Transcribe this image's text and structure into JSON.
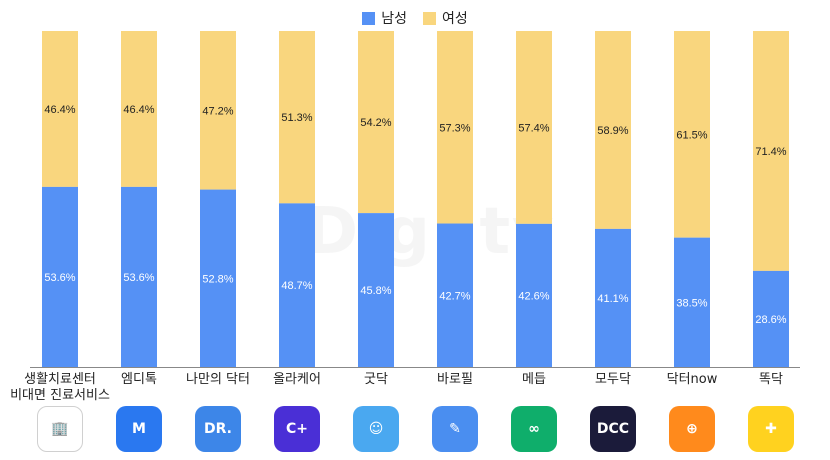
{
  "legend": {
    "male": "남성",
    "female": "여성"
  },
  "colors": {
    "male": "#5591f5",
    "female": "#f9d67e",
    "axis": "#888888"
  },
  "watermark": "Dighty",
  "chart_data": {
    "type": "bar",
    "stacked": true,
    "percent": true,
    "ylim": [
      0,
      100
    ],
    "legend_position": "top-center",
    "categories": [
      "생활치료센터\n비대면 진료서비스",
      "엠디톡",
      "나만의 닥터",
      "올라케어",
      "굿닥",
      "바로필",
      "메듭",
      "모두닥",
      "닥터now",
      "똑닥"
    ],
    "series": [
      {
        "name": "남성",
        "values": [
          53.6,
          53.6,
          52.8,
          48.7,
          45.8,
          42.7,
          42.6,
          41.1,
          38.5,
          28.6
        ]
      },
      {
        "name": "여성",
        "values": [
          46.4,
          46.4,
          47.2,
          51.3,
          54.2,
          57.3,
          57.4,
          58.9,
          61.5,
          71.4
        ]
      }
    ]
  },
  "icons": [
    {
      "name": "gov-building-icon",
      "bg": "#ffffff",
      "fg": "#3b6fc7",
      "border": "#d0d0d0",
      "glyph": "🏢"
    },
    {
      "name": "mdtalk-icon",
      "bg": "#2a78f0",
      "fg": "#ffffff",
      "glyph": "M"
    },
    {
      "name": "dr-icon",
      "bg": "#3d86e8",
      "fg": "#ffffff",
      "glyph": "DR."
    },
    {
      "name": "ollacare-icon",
      "bg": "#4a2fd6",
      "fg": "#ffffff",
      "glyph": "C+"
    },
    {
      "name": "goodoc-icon",
      "bg": "#4aa8f0",
      "fg": "#ffffff",
      "glyph": "☺"
    },
    {
      "name": "barophil-icon",
      "bg": "#4a8ef0",
      "fg": "#ffffff",
      "glyph": "✎"
    },
    {
      "name": "medeup-icon",
      "bg": "#0fae6b",
      "fg": "#ffffff",
      "glyph": "∞"
    },
    {
      "name": "modoodoc-icon",
      "bg": "#1b1b3a",
      "fg": "#ffffff",
      "glyph": "DCC"
    },
    {
      "name": "doctornow-icon",
      "bg": "#ff8a1c",
      "fg": "#ffffff",
      "glyph": "⊕"
    },
    {
      "name": "ddocdoc-icon",
      "bg": "#ffd21f",
      "fg": "#ffffff",
      "glyph": "✚"
    }
  ]
}
